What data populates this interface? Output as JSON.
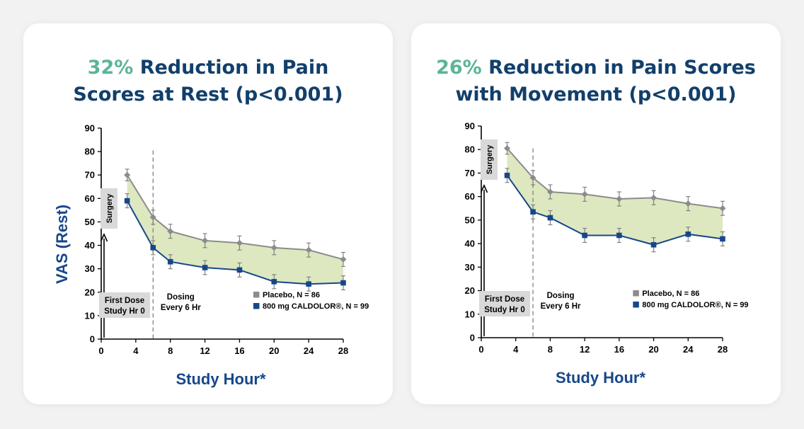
{
  "chart_data": [
    {
      "type": "line",
      "title_highlight": "32%",
      "title_line1": "Reduction in Pain",
      "title_line2": "Scores at Rest (p<0.001)",
      "ylabel": "VAS (Rest)",
      "xlabel": "Study Hour*",
      "ylim": [
        0,
        90
      ],
      "yticks": [
        0,
        10,
        20,
        30,
        40,
        50,
        60,
        70,
        80,
        90
      ],
      "xlim": [
        0,
        28
      ],
      "xticks": [
        0,
        4,
        8,
        12,
        16,
        20,
        24,
        28
      ],
      "grid": false,
      "shaded_between_series": true,
      "dosing_start_hour": 6,
      "series": [
        {
          "name": "Placebo, N = 86",
          "color": "#8c8c8c",
          "marker": "diamond",
          "x": [
            3,
            6,
            8,
            12,
            16,
            20,
            24,
            28
          ],
          "y": [
            70,
            52,
            46,
            42,
            41,
            39,
            38,
            34
          ],
          "error": [
            2.5,
            3,
            3,
            3,
            3,
            3,
            3,
            3
          ]
        },
        {
          "name": "800 mg CALDOLOR®, N = 99",
          "color": "#17478a",
          "marker": "square",
          "x": [
            3,
            6,
            8,
            12,
            16,
            20,
            24,
            28
          ],
          "y": [
            59,
            39,
            33,
            30.5,
            29.5,
            24.5,
            23.5,
            24
          ],
          "error": [
            3,
            3,
            3,
            3,
            3,
            3,
            3,
            3
          ]
        }
      ],
      "annotations": {
        "surgery": "Surgery",
        "first_dose_line1": "First Dose",
        "first_dose_line2": "Study Hr 0",
        "dosing_line1": "Dosing",
        "dosing_line2": "Every 6 Hr"
      },
      "legend_position": "lower-right"
    },
    {
      "type": "line",
      "title_highlight": "26%",
      "title_line1": "Reduction in Pain Scores",
      "title_line2": "with Movement (p<0.001)",
      "ylabel": "",
      "xlabel": "Study Hour*",
      "ylim": [
        0,
        90
      ],
      "yticks": [
        0,
        10,
        20,
        30,
        40,
        50,
        60,
        70,
        80,
        90
      ],
      "xlim": [
        0,
        28
      ],
      "xticks": [
        0,
        4,
        8,
        12,
        16,
        20,
        24,
        28
      ],
      "grid": false,
      "shaded_between_series": true,
      "dosing_start_hour": 6,
      "series": [
        {
          "name": "Placebo, N = 86",
          "color": "#8c8c8c",
          "marker": "diamond",
          "x": [
            3,
            6,
            8,
            12,
            16,
            20,
            24,
            28
          ],
          "y": [
            80.5,
            68,
            62,
            61,
            59,
            59.5,
            57,
            55
          ],
          "error": [
            2.5,
            3,
            3,
            3,
            3,
            3,
            3,
            3
          ]
        },
        {
          "name": "800 mg CALDOLOR®, N = 99",
          "color": "#17478a",
          "marker": "square",
          "x": [
            3,
            6,
            8,
            12,
            16,
            20,
            24,
            28
          ],
          "y": [
            69,
            53.5,
            51,
            43.5,
            43.5,
            39.5,
            44,
            42
          ],
          "error": [
            3,
            3,
            3,
            3,
            3,
            3,
            3,
            3
          ]
        }
      ],
      "annotations": {
        "surgery": "Surgery",
        "first_dose_line1": "First Dose",
        "first_dose_line2": "Study Hr 0",
        "dosing_line1": "Dosing",
        "dosing_line2": "Every 6 Hr"
      },
      "legend_position": "lower-right"
    }
  ],
  "colors": {
    "title": "#123f6b",
    "accent": "#5cb49a",
    "axis_title": "#17478a",
    "fill": "#dde8c0",
    "annotation_box": "#d9d9d9"
  }
}
